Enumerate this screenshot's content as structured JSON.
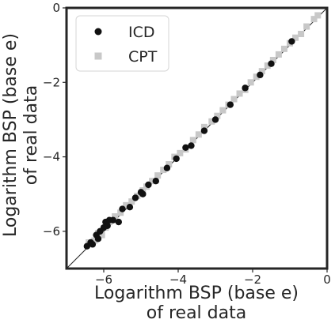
{
  "chart_data": {
    "type": "scatter",
    "xlabel": [
      "Logarithm BSP (base e)",
      "of real data"
    ],
    "ylabel": [
      "Logarithm BSP (base e)",
      "of real data"
    ],
    "xlim": [
      -7,
      0
    ],
    "ylim": [
      -7,
      0
    ],
    "xticks": [
      -6,
      -4,
      -2,
      0
    ],
    "yticks": [
      -6,
      -4,
      -2,
      0
    ],
    "x_tick_labels": [
      "−6",
      "−4",
      "−2",
      "0"
    ],
    "y_tick_labels": [
      "−6",
      "−4",
      "−2",
      "0"
    ],
    "grid": false,
    "legend_position": "top-left",
    "diagonal_line": [
      [
        -7,
        -7
      ],
      [
        0,
        0
      ]
    ],
    "series": [
      {
        "name": "ICD",
        "marker": "circle",
        "color": "#111111",
        "points": [
          [
            -6.45,
            -6.4
          ],
          [
            -6.35,
            -6.3
          ],
          [
            -6.3,
            -6.35
          ],
          [
            -6.2,
            -6.1
          ],
          [
            -6.15,
            -6.2
          ],
          [
            -6.1,
            -6.0
          ],
          [
            -6.0,
            -5.9
          ],
          [
            -5.95,
            -5.75
          ],
          [
            -5.9,
            -5.85
          ],
          [
            -5.85,
            -5.7
          ],
          [
            -5.75,
            -5.7
          ],
          [
            -5.6,
            -5.75
          ],
          [
            -5.5,
            -5.4
          ],
          [
            -5.3,
            -5.35
          ],
          [
            -5.15,
            -5.1
          ],
          [
            -5.0,
            -4.95
          ],
          [
            -4.95,
            -5.0
          ],
          [
            -4.8,
            -4.75
          ],
          [
            -4.6,
            -4.65
          ],
          [
            -4.3,
            -4.3
          ],
          [
            -4.05,
            -4.05
          ],
          [
            -3.8,
            -3.75
          ],
          [
            -3.65,
            -3.7
          ],
          [
            -3.3,
            -3.3
          ],
          [
            -3.0,
            -3.0
          ],
          [
            -2.6,
            -2.6
          ],
          [
            -2.2,
            -2.15
          ],
          [
            -1.8,
            -1.8
          ],
          [
            -1.5,
            -1.5
          ],
          [
            -0.95,
            -0.9
          ]
        ]
      },
      {
        "name": "CPT",
        "marker": "square",
        "color": "#c8c8c8",
        "points": [
          [
            -6.4,
            -6.3
          ],
          [
            -6.25,
            -6.25
          ],
          [
            -6.15,
            -6.05
          ],
          [
            -6.05,
            -6.1
          ],
          [
            -5.95,
            -5.9
          ],
          [
            -5.85,
            -5.75
          ],
          [
            -5.7,
            -5.6
          ],
          [
            -5.55,
            -5.5
          ],
          [
            -5.4,
            -5.3
          ],
          [
            -5.25,
            -5.2
          ],
          [
            -5.1,
            -5.05
          ],
          [
            -4.95,
            -4.9
          ],
          [
            -4.85,
            -4.8
          ],
          [
            -4.7,
            -4.65
          ],
          [
            -4.55,
            -4.5
          ],
          [
            -4.4,
            -4.35
          ],
          [
            -4.25,
            -4.2
          ],
          [
            -4.1,
            -4.0
          ],
          [
            -3.95,
            -3.9
          ],
          [
            -3.8,
            -3.8
          ],
          [
            -3.6,
            -3.55
          ],
          [
            -3.45,
            -3.4
          ],
          [
            -3.3,
            -3.2
          ],
          [
            -3.1,
            -3.05
          ],
          [
            -2.95,
            -2.9
          ],
          [
            -2.8,
            -2.75
          ],
          [
            -2.65,
            -2.6
          ],
          [
            -2.5,
            -2.45
          ],
          [
            -2.35,
            -2.3
          ],
          [
            -2.2,
            -2.2
          ],
          [
            -2.05,
            -2.0
          ],
          [
            -1.9,
            -1.85
          ],
          [
            -1.75,
            -1.7
          ],
          [
            -1.6,
            -1.55
          ],
          [
            -1.45,
            -1.4
          ],
          [
            -1.3,
            -1.25
          ],
          [
            -1.15,
            -1.1
          ],
          [
            -1.0,
            -0.95
          ],
          [
            -0.85,
            -0.8
          ],
          [
            -0.7,
            -0.7
          ],
          [
            -0.55,
            -0.5
          ],
          [
            -0.35,
            -0.3
          ],
          [
            -0.25,
            -0.2
          ]
        ]
      }
    ]
  }
}
